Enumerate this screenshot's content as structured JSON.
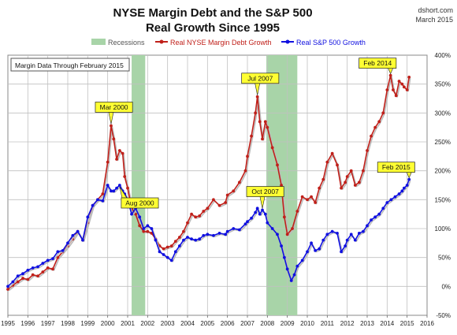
{
  "colors": {
    "margin": "#c0201a",
    "sp500": "#1010e0",
    "recession": "#a8d4a8",
    "callout_fill": "#ffff33",
    "grid": "#c0c0c0"
  },
  "chart_data": {
    "type": "line",
    "title_line1": "NYSE Margin Debt and the S&P 500",
    "title_line2": "Real Growth Since 1995",
    "source": "dshort.com",
    "date": "March 2015",
    "note": "Margin Data Through February 2015",
    "grid": true,
    "legend": {
      "placement": "top",
      "items": [
        {
          "key": "recession",
          "label": "Recessions"
        },
        {
          "key": "margin",
          "label": "Real NYSE Margin Debt Growth"
        },
        {
          "key": "sp500",
          "label": "Real S&P 500 Growth"
        }
      ]
    },
    "x_range": [
      1995,
      2016
    ],
    "y_range": [
      -50,
      400
    ],
    "x_ticks": [
      "1995",
      "1996",
      "1997",
      "1998",
      "1999",
      "2000",
      "2001",
      "2002",
      "2003",
      "2004",
      "2005",
      "2006",
      "2007",
      "2008",
      "2009",
      "2010",
      "2011",
      "2012",
      "2013",
      "2014",
      "2015",
      "2016"
    ],
    "y_ticks": [
      "-50%",
      "0%",
      "50%",
      "100%",
      "150%",
      "200%",
      "250%",
      "300%",
      "350%",
      "400%"
    ],
    "recessions": [
      {
        "start": 2001.2,
        "end": 2001.88
      },
      {
        "start": 2007.95,
        "end": 2009.5
      }
    ],
    "series": [
      {
        "name": "Real NYSE Margin Debt Growth",
        "color_key": "margin",
        "points": [
          [
            1995.0,
            -5
          ],
          [
            1995.25,
            2
          ],
          [
            1995.5,
            8
          ],
          [
            1995.75,
            14
          ],
          [
            1996.0,
            12
          ],
          [
            1996.25,
            20
          ],
          [
            1996.5,
            18
          ],
          [
            1996.75,
            25
          ],
          [
            1997.0,
            32
          ],
          [
            1997.25,
            30
          ],
          [
            1997.5,
            50
          ],
          [
            1997.75,
            60
          ],
          [
            1998.0,
            70
          ],
          [
            1998.25,
            82
          ],
          [
            1998.5,
            95
          ],
          [
            1998.75,
            80
          ],
          [
            1999.0,
            110
          ],
          [
            1999.25,
            140
          ],
          [
            1999.5,
            150
          ],
          [
            1999.75,
            160
          ],
          [
            2000.0,
            215
          ],
          [
            2000.17,
            278
          ],
          [
            2000.3,
            255
          ],
          [
            2000.45,
            220
          ],
          [
            2000.6,
            235
          ],
          [
            2000.75,
            230
          ],
          [
            2000.85,
            190
          ],
          [
            2001.0,
            170
          ],
          [
            2001.2,
            135
          ],
          [
            2001.4,
            125
          ],
          [
            2001.6,
            105
          ],
          [
            2001.8,
            95
          ],
          [
            2002.0,
            95
          ],
          [
            2002.2,
            92
          ],
          [
            2002.4,
            82
          ],
          [
            2002.6,
            70
          ],
          [
            2002.8,
            65
          ],
          [
            2003.0,
            68
          ],
          [
            2003.2,
            70
          ],
          [
            2003.4,
            78
          ],
          [
            2003.6,
            85
          ],
          [
            2003.8,
            95
          ],
          [
            2004.0,
            110
          ],
          [
            2004.2,
            125
          ],
          [
            2004.4,
            120
          ],
          [
            2004.6,
            122
          ],
          [
            2004.8,
            130
          ],
          [
            2005.0,
            135
          ],
          [
            2005.3,
            150
          ],
          [
            2005.6,
            140
          ],
          [
            2005.9,
            145
          ],
          [
            2006.0,
            158
          ],
          [
            2006.3,
            165
          ],
          [
            2006.6,
            180
          ],
          [
            2006.9,
            200
          ],
          [
            2007.0,
            225
          ],
          [
            2007.2,
            260
          ],
          [
            2007.4,
            300
          ],
          [
            2007.5,
            328
          ],
          [
            2007.62,
            285
          ],
          [
            2007.75,
            255
          ],
          [
            2007.9,
            285
          ],
          [
            2008.0,
            275
          ],
          [
            2008.25,
            240
          ],
          [
            2008.5,
            210
          ],
          [
            2008.7,
            175
          ],
          [
            2008.85,
            120
          ],
          [
            2009.0,
            90
          ],
          [
            2009.25,
            100
          ],
          [
            2009.5,
            130
          ],
          [
            2009.75,
            155
          ],
          [
            2010.0,
            150
          ],
          [
            2010.2,
            155
          ],
          [
            2010.4,
            145
          ],
          [
            2010.6,
            170
          ],
          [
            2010.8,
            185
          ],
          [
            2011.0,
            215
          ],
          [
            2011.25,
            230
          ],
          [
            2011.5,
            210
          ],
          [
            2011.7,
            170
          ],
          [
            2011.9,
            180
          ],
          [
            2012.0,
            190
          ],
          [
            2012.2,
            200
          ],
          [
            2012.4,
            175
          ],
          [
            2012.6,
            180
          ],
          [
            2012.8,
            200
          ],
          [
            2013.0,
            235
          ],
          [
            2013.2,
            260
          ],
          [
            2013.4,
            275
          ],
          [
            2013.6,
            285
          ],
          [
            2013.8,
            300
          ],
          [
            2014.0,
            340
          ],
          [
            2014.17,
            365
          ],
          [
            2014.3,
            340
          ],
          [
            2014.45,
            330
          ],
          [
            2014.6,
            355
          ],
          [
            2014.75,
            350
          ],
          [
            2014.85,
            345
          ],
          [
            2015.0,
            340
          ],
          [
            2015.1,
            362
          ]
        ]
      },
      {
        "name": "Real S&P 500 Growth",
        "color_key": "sp500",
        "points": [
          [
            1995.0,
            0
          ],
          [
            1995.25,
            8
          ],
          [
            1995.5,
            18
          ],
          [
            1995.75,
            22
          ],
          [
            1996.0,
            28
          ],
          [
            1996.25,
            32
          ],
          [
            1996.5,
            34
          ],
          [
            1996.75,
            40
          ],
          [
            1997.0,
            45
          ],
          [
            1997.25,
            48
          ],
          [
            1997.5,
            60
          ],
          [
            1997.75,
            62
          ],
          [
            1998.0,
            75
          ],
          [
            1998.25,
            88
          ],
          [
            1998.5,
            95
          ],
          [
            1998.75,
            80
          ],
          [
            1999.0,
            120
          ],
          [
            1999.25,
            140
          ],
          [
            1999.5,
            150
          ],
          [
            1999.75,
            148
          ],
          [
            2000.0,
            175
          ],
          [
            2000.17,
            165
          ],
          [
            2000.3,
            165
          ],
          [
            2000.45,
            170
          ],
          [
            2000.6,
            175
          ],
          [
            2000.75,
            165
          ],
          [
            2000.85,
            160
          ],
          [
            2001.0,
            150
          ],
          [
            2001.2,
            125
          ],
          [
            2001.4,
            135
          ],
          [
            2001.6,
            120
          ],
          [
            2001.8,
            100
          ],
          [
            2002.0,
            105
          ],
          [
            2002.2,
            100
          ],
          [
            2002.4,
            80
          ],
          [
            2002.6,
            60
          ],
          [
            2002.8,
            55
          ],
          [
            2003.0,
            50
          ],
          [
            2003.2,
            45
          ],
          [
            2003.4,
            60
          ],
          [
            2003.6,
            70
          ],
          [
            2003.8,
            80
          ],
          [
            2004.0,
            85
          ],
          [
            2004.2,
            82
          ],
          [
            2004.4,
            80
          ],
          [
            2004.6,
            82
          ],
          [
            2004.8,
            88
          ],
          [
            2005.0,
            90
          ],
          [
            2005.3,
            88
          ],
          [
            2005.6,
            92
          ],
          [
            2005.9,
            90
          ],
          [
            2006.0,
            95
          ],
          [
            2006.3,
            100
          ],
          [
            2006.6,
            98
          ],
          [
            2006.9,
            108
          ],
          [
            2007.0,
            112
          ],
          [
            2007.2,
            118
          ],
          [
            2007.4,
            128
          ],
          [
            2007.5,
            135
          ],
          [
            2007.62,
            125
          ],
          [
            2007.75,
            132
          ],
          [
            2007.9,
            125
          ],
          [
            2008.0,
            110
          ],
          [
            2008.25,
            100
          ],
          [
            2008.5,
            90
          ],
          [
            2008.7,
            70
          ],
          [
            2008.85,
            50
          ],
          [
            2009.0,
            30
          ],
          [
            2009.2,
            10
          ],
          [
            2009.35,
            20
          ],
          [
            2009.5,
            35
          ],
          [
            2009.75,
            45
          ],
          [
            2010.0,
            60
          ],
          [
            2010.2,
            75
          ],
          [
            2010.4,
            62
          ],
          [
            2010.6,
            65
          ],
          [
            2010.8,
            80
          ],
          [
            2011.0,
            90
          ],
          [
            2011.25,
            95
          ],
          [
            2011.5,
            92
          ],
          [
            2011.7,
            60
          ],
          [
            2011.9,
            70
          ],
          [
            2012.0,
            80
          ],
          [
            2012.2,
            90
          ],
          [
            2012.4,
            80
          ],
          [
            2012.6,
            92
          ],
          [
            2012.8,
            95
          ],
          [
            2013.0,
            105
          ],
          [
            2013.2,
            115
          ],
          [
            2013.4,
            120
          ],
          [
            2013.6,
            125
          ],
          [
            2013.8,
            135
          ],
          [
            2014.0,
            145
          ],
          [
            2014.2,
            150
          ],
          [
            2014.4,
            155
          ],
          [
            2014.6,
            160
          ],
          [
            2014.75,
            165
          ],
          [
            2014.85,
            170
          ],
          [
            2015.0,
            175
          ],
          [
            2015.1,
            185
          ]
        ]
      }
    ],
    "annotations": [
      {
        "label": "Mar 2000",
        "x": 2000.17,
        "y": 278,
        "series": "margin",
        "position": "above"
      },
      {
        "label": "Aug 2000",
        "x": 2000.6,
        "y": 175,
        "series": "sp500",
        "position": "below-right"
      },
      {
        "label": "Jul 2007",
        "x": 2007.5,
        "y": 328,
        "series": "margin",
        "position": "above"
      },
      {
        "label": "Oct 2007",
        "x": 2007.75,
        "y": 132,
        "series": "sp500",
        "position": "above"
      },
      {
        "label": "Feb 2014",
        "x": 2014.17,
        "y": 365,
        "series": "margin",
        "position": "above-left"
      },
      {
        "label": "Feb 2015",
        "x": 2015.1,
        "y": 185,
        "series": "sp500",
        "position": "above-left"
      }
    ]
  }
}
